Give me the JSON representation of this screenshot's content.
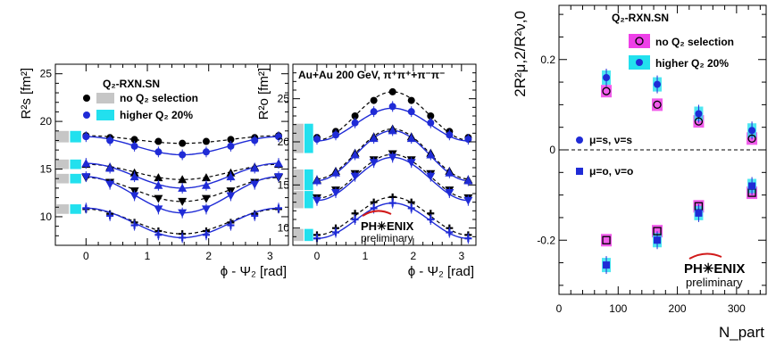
{
  "chart_data": [
    {
      "type": "scatter",
      "panel": "left",
      "xlabel": "ϕ - Ψ₂ [rad]",
      "ylabel": "R²s [fm²]",
      "xlim": [
        -0.5,
        3.3
      ],
      "ylim": [
        7,
        26
      ],
      "xticks": [
        "0",
        "1",
        "2",
        "3"
      ],
      "yticks": [
        "10",
        "15",
        "20",
        "25"
      ],
      "legend_title": "Q₂-RXN.SN",
      "legend": [
        "no Q₂ selection",
        "higher Q₂ 20%"
      ],
      "x": [
        0,
        0.39,
        0.79,
        1.18,
        1.57,
        1.96,
        2.36,
        2.75,
        3.14
      ],
      "series": [
        {
          "name": "no Q₂ selection",
          "marker": "circle",
          "values": [
            18.5,
            18.3,
            18.1,
            17.9,
            17.7,
            17.9,
            18.1,
            18.3,
            18.5
          ]
        },
        {
          "name": "higher Q₂ 20%",
          "marker": "circle",
          "values": [
            18.4,
            18.0,
            17.4,
            16.8,
            16.5,
            16.8,
            17.4,
            18.0,
            18.4
          ]
        },
        {
          "name": "no Q₂ selection",
          "marker": "triangle-up",
          "values": [
            15.5,
            15.2,
            14.6,
            14.1,
            13.9,
            14.1,
            14.6,
            15.2,
            15.5
          ]
        },
        {
          "name": "higher Q₂ 20%",
          "marker": "triangle-up",
          "values": [
            15.6,
            15.1,
            14.2,
            13.3,
            13.0,
            13.3,
            14.2,
            15.1,
            15.6
          ]
        },
        {
          "name": "no Q₂ selection",
          "marker": "triangle-down",
          "values": [
            14.1,
            13.6,
            12.7,
            11.9,
            11.6,
            11.9,
            12.7,
            13.6,
            14.1
          ]
        },
        {
          "name": "higher Q₂ 20%",
          "marker": "triangle-down",
          "values": [
            14.2,
            13.4,
            12.2,
            10.8,
            10.4,
            10.8,
            12.2,
            13.4,
            14.2
          ]
        },
        {
          "name": "no Q₂ selection",
          "marker": "cross",
          "values": [
            10.8,
            10.3,
            9.4,
            8.5,
            8.2,
            8.5,
            9.4,
            10.3,
            10.8
          ]
        },
        {
          "name": "higher Q₂ 20%",
          "marker": "cross",
          "values": [
            10.9,
            10.1,
            9.1,
            8.1,
            7.8,
            8.1,
            9.1,
            10.1,
            10.9
          ]
        }
      ],
      "fits": [
        {
          "series": 0,
          "style": "dashed",
          "mean": 18.1,
          "amp": 0.4
        },
        {
          "series": 1,
          "style": "solid",
          "mean": 17.45,
          "amp": 0.95
        },
        {
          "series": 2,
          "style": "dashed",
          "mean": 14.7,
          "amp": 0.8
        },
        {
          "series": 3,
          "style": "solid",
          "mean": 14.3,
          "amp": 1.3
        },
        {
          "series": 4,
          "style": "dashed",
          "mean": 12.85,
          "amp": 1.25
        },
        {
          "series": 5,
          "style": "solid",
          "mean": 12.3,
          "amp": 1.9
        },
        {
          "series": 6,
          "style": "dashed",
          "mean": 9.5,
          "amp": 1.3
        },
        {
          "series": 7,
          "style": "solid",
          "mean": 9.35,
          "amp": 1.55
        }
      ],
      "systematics": [
        {
          "center": 18.4,
          "half": 0.6
        },
        {
          "center": 15.5,
          "half": 0.5
        },
        {
          "center": 14.0,
          "half": 0.5
        },
        {
          "center": 10.8,
          "half": 0.5
        }
      ]
    },
    {
      "type": "scatter",
      "panel": "middle",
      "xlabel": "ϕ - Ψ₂ [rad]",
      "ylabel": "R²o [fm²]",
      "title": "Au+Au 200 GeV, π⁺π⁺+π⁻π⁻",
      "xlim": [
        -0.5,
        3.3
      ],
      "ylim": [
        8,
        29
      ],
      "xticks": [
        "0",
        "1",
        "2",
        "3"
      ],
      "yticks": [
        "10",
        "15",
        "20",
        "25"
      ],
      "x": [
        0,
        0.39,
        0.79,
        1.18,
        1.57,
        1.96,
        2.36,
        2.75,
        3.14
      ],
      "series": [
        {
          "name": "no Q₂ selection",
          "marker": "circle",
          "values": [
            20.5,
            21.2,
            23.0,
            24.8,
            25.8,
            24.8,
            23.0,
            21.2,
            20.5
          ]
        },
        {
          "name": "higher Q₂ 20%",
          "marker": "circle",
          "values": [
            20.3,
            20.8,
            22.2,
            23.5,
            24.1,
            23.5,
            22.2,
            20.8,
            20.3
          ]
        },
        {
          "name": "no Q₂ selection",
          "marker": "triangle-up",
          "values": [
            15.6,
            16.6,
            18.7,
            20.6,
            21.5,
            20.6,
            18.7,
            16.6,
            15.6
          ]
        },
        {
          "name": "higher Q₂ 20%",
          "marker": "triangle-up",
          "values": [
            15.5,
            16.4,
            18.5,
            20.4,
            21.3,
            20.4,
            18.5,
            16.4,
            15.5
          ]
        },
        {
          "name": "no Q₂ selection",
          "marker": "triangle-down",
          "values": [
            13.5,
            14.4,
            16.3,
            17.9,
            18.6,
            17.9,
            16.3,
            14.4,
            13.5
          ]
        },
        {
          "name": "higher Q₂ 20%",
          "marker": "triangle-down",
          "values": [
            13.2,
            14.1,
            16.0,
            17.6,
            18.2,
            17.6,
            16.0,
            14.1,
            13.2
          ]
        },
        {
          "name": "no Q₂ selection",
          "marker": "cross",
          "values": [
            9.2,
            10.0,
            11.7,
            13.0,
            13.6,
            13.0,
            11.7,
            10.0,
            9.2
          ]
        },
        {
          "name": "higher Q₂ 20%",
          "marker": "cross",
          "values": [
            8.8,
            9.5,
            11.0,
            12.3,
            12.9,
            12.3,
            11.0,
            9.5,
            8.8
          ]
        }
      ],
      "fits": [
        {
          "series": 0,
          "style": "dashed",
          "mean": 23.0,
          "amp": 2.8
        },
        {
          "series": 1,
          "style": "solid",
          "mean": 22.0,
          "amp": 1.9
        },
        {
          "series": 2,
          "style": "dashed",
          "mean": 18.6,
          "amp": 2.9
        },
        {
          "series": 3,
          "style": "solid",
          "mean": 18.4,
          "amp": 2.9
        },
        {
          "series": 4,
          "style": "dashed",
          "mean": 16.0,
          "amp": 2.55
        },
        {
          "series": 5,
          "style": "solid",
          "mean": 15.7,
          "amp": 2.5
        },
        {
          "series": 6,
          "style": "dashed",
          "mean": 11.4,
          "amp": 2.2
        },
        {
          "series": 7,
          "style": "solid",
          "mean": 10.85,
          "amp": 2.05
        }
      ],
      "systematics": [
        {
          "center": 20.4,
          "half": 1.7
        },
        {
          "center": 15.6,
          "half": 1.2
        },
        {
          "center": 13.3,
          "half": 1.0
        },
        {
          "center": 9.2,
          "half": 0.7
        }
      ],
      "logo": "PH✳ENIX",
      "logo_sub": "preliminary"
    },
    {
      "type": "scatter",
      "panel": "right",
      "xlabel": "N_part",
      "ylabel": "2R²μ,2/R²ν,0",
      "xlim": [
        0,
        350
      ],
      "ylim": [
        -0.32,
        0.32
      ],
      "xticks": [
        "0",
        "100",
        "200",
        "300"
      ],
      "yticks": [
        "-0.2",
        "0",
        "0.2"
      ],
      "legend_title": "Q₂-RXN.SN",
      "legend": [
        "no Q₂ selection",
        "higher Q₂ 20%"
      ],
      "annotations": [
        "μ=s, ν=s",
        "μ=o, ν=o"
      ],
      "x": [
        80,
        166,
        236,
        326
      ],
      "series": [
        {
          "name": "no Q₂ selection",
          "marker": "open-circle",
          "values": [
            0.13,
            0.1,
            0.063,
            0.025
          ]
        },
        {
          "name": "higher Q₂ 20%",
          "marker": "circle",
          "values": [
            0.16,
            0.145,
            0.08,
            0.043
          ]
        },
        {
          "name": "no Q₂ selection",
          "marker": "open-square",
          "values": [
            -0.2,
            -0.18,
            -0.125,
            -0.095
          ]
        },
        {
          "name": "higher Q₂ 20%",
          "marker": "square",
          "values": [
            -0.255,
            -0.2,
            -0.14,
            -0.08
          ]
        }
      ],
      "logo": "PH✳ENIX",
      "logo_sub": "preliminary"
    }
  ],
  "colors": {
    "blue": "#1f2bd6",
    "black": "#000000",
    "gray_band": "#c6c6c6",
    "cyan_band": "#22e0ee",
    "magenta_band": "#ee3fe8",
    "phenix_red": "#d11a1a"
  }
}
